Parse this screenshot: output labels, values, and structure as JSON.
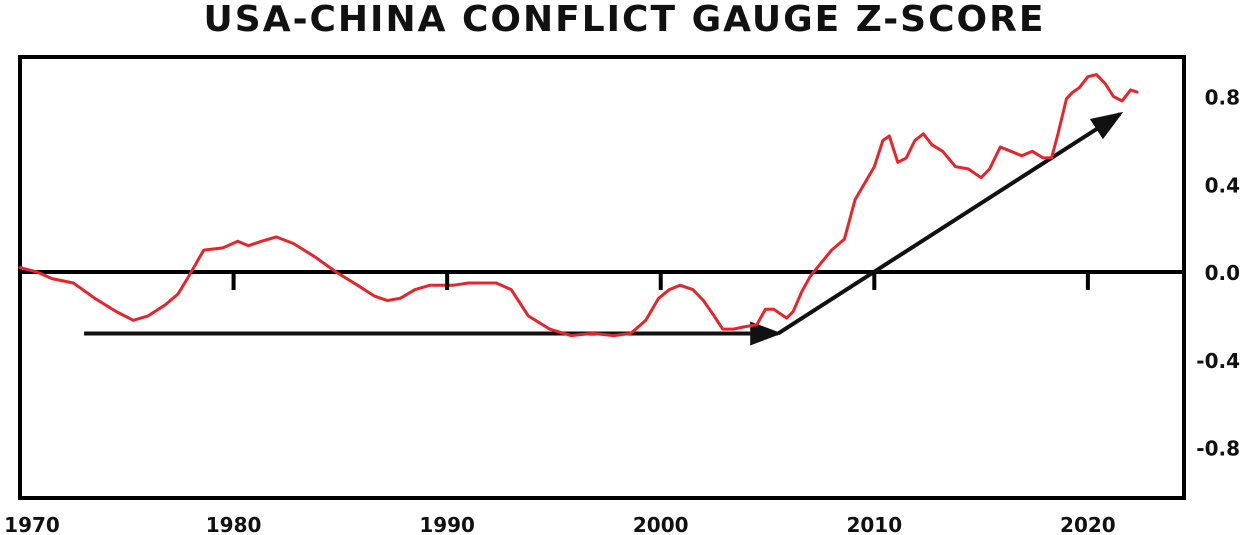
{
  "chart_data": {
    "type": "line",
    "title": "USA-CHINA CONFLICT GAUGE Z-SCORE",
    "xlabel": "",
    "ylabel": "",
    "xlim": [
      1970,
      2024.5
    ],
    "ylim": [
      -1.03,
      0.98
    ],
    "x_ticks": [
      1970,
      1980,
      1990,
      2000,
      2010,
      2020
    ],
    "y_ticks": [
      0.8,
      0.4,
      0.0,
      -0.4,
      -0.8
    ],
    "y_tick_labels": [
      "0.8",
      "0.4",
      "0.0",
      "-0.4",
      "-0.8"
    ],
    "y_axis_side": "right",
    "grid": false,
    "legend": "none",
    "colors": {
      "series": "#e8242b",
      "axis": "#000000",
      "arrow": "#111111"
    },
    "series": [
      {
        "x": [
          1970.0,
          1970.8,
          1971.5,
          1972.5,
          1973.5,
          1974.5,
          1975.3,
          1976.0,
          1976.8,
          1977.4,
          1977.9,
          1978.6,
          1979.5,
          1980.2,
          1980.7,
          1981.3,
          1982.0,
          1982.8,
          1983.8,
          1984.8,
          1985.8,
          1986.6,
          1987.2,
          1987.8,
          1988.5,
          1989.2,
          1990.3,
          1991.0,
          1991.8,
          1992.3,
          1993.0,
          1993.8,
          1994.8,
          1995.8,
          1996.8,
          1997.8,
          1998.6,
          1999.3,
          1999.9,
          2000.4,
          2000.9,
          2001.5,
          2002.0,
          2002.5,
          2002.9,
          2003.4,
          2003.9,
          2004.5,
          2004.9,
          2005.3,
          2005.9,
          2006.2,
          2006.6,
          2007.0,
          2007.5,
          2008.0,
          2008.6,
          2009.1,
          2009.4,
          2009.7,
          2010.0,
          2010.4,
          2010.7,
          2011.1,
          2011.5,
          2011.9,
          2012.3,
          2012.7,
          2013.2,
          2013.8,
          2014.4,
          2015.0,
          2015.4,
          2015.9,
          2016.4,
          2016.9,
          2017.4,
          2017.9,
          2018.3,
          2018.6,
          2019.0,
          2019.3,
          2019.6,
          2020.0,
          2020.4,
          2020.8,
          2021.2,
          2021.6,
          2022.0,
          2022.3
        ],
        "y": [
          0.02,
          0.0,
          -0.03,
          -0.05,
          -0.12,
          -0.18,
          -0.22,
          -0.2,
          -0.15,
          -0.1,
          -0.02,
          0.1,
          0.11,
          0.14,
          0.12,
          0.14,
          0.16,
          0.13,
          0.07,
          0.0,
          -0.06,
          -0.11,
          -0.13,
          -0.12,
          -0.08,
          -0.06,
          -0.06,
          -0.05,
          -0.05,
          -0.05,
          -0.08,
          -0.2,
          -0.26,
          -0.29,
          -0.28,
          -0.29,
          -0.28,
          -0.22,
          -0.12,
          -0.08,
          -0.06,
          -0.08,
          -0.13,
          -0.2,
          -0.26,
          -0.26,
          -0.25,
          -0.24,
          -0.17,
          -0.17,
          -0.21,
          -0.18,
          -0.09,
          -0.02,
          0.04,
          0.1,
          0.15,
          0.33,
          0.38,
          0.43,
          0.48,
          0.6,
          0.62,
          0.5,
          0.52,
          0.6,
          0.63,
          0.58,
          0.55,
          0.48,
          0.47,
          0.43,
          0.47,
          0.57,
          0.55,
          0.53,
          0.55,
          0.52,
          0.52,
          0.63,
          0.79,
          0.82,
          0.84,
          0.89,
          0.9,
          0.86,
          0.8,
          0.78,
          0.83,
          0.82
        ]
      }
    ],
    "annotations": [
      {
        "type": "arrow",
        "from": [
          1973.0,
          -0.28
        ],
        "to": [
          2005.5,
          -0.28
        ]
      },
      {
        "type": "arrow",
        "from": [
          2005.5,
          -0.28
        ],
        "to": [
          2021.5,
          0.72
        ]
      }
    ]
  }
}
